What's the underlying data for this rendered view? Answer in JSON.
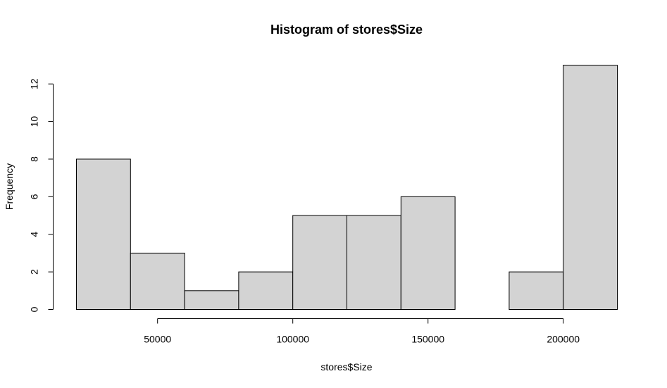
{
  "chart_data": {
    "type": "bar",
    "title": "Histogram of stores$Size",
    "xlabel": "stores$Size",
    "ylabel": "Frequency",
    "bins": [
      {
        "start": 20000,
        "end": 40000,
        "count": 8
      },
      {
        "start": 40000,
        "end": 60000,
        "count": 3
      },
      {
        "start": 60000,
        "end": 80000,
        "count": 1
      },
      {
        "start": 80000,
        "end": 100000,
        "count": 2
      },
      {
        "start": 100000,
        "end": 120000,
        "count": 5
      },
      {
        "start": 120000,
        "end": 140000,
        "count": 5
      },
      {
        "start": 140000,
        "end": 160000,
        "count": 6
      },
      {
        "start": 160000,
        "end": 180000,
        "count": 0
      },
      {
        "start": 180000,
        "end": 200000,
        "count": 2
      },
      {
        "start": 200000,
        "end": 220000,
        "count": 13
      }
    ],
    "x_ticks": [
      50000,
      100000,
      150000,
      200000
    ],
    "y_ticks": [
      0,
      2,
      4,
      6,
      8,
      10,
      12
    ],
    "xlim": [
      20000,
      220000
    ],
    "ylim": [
      0,
      13
    ],
    "colors": {
      "bar_fill": "#d3d3d3",
      "bar_stroke": "#000000"
    },
    "grid": false,
    "legend": "none"
  }
}
